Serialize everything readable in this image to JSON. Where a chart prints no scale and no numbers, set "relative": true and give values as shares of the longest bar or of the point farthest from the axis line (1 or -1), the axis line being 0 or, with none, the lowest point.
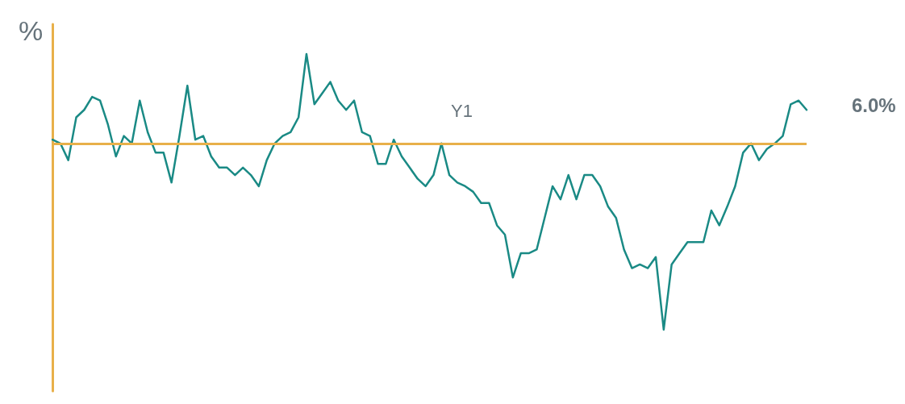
{
  "chart_data": {
    "type": "line",
    "relative": true,
    "ylabel": "%",
    "annotations": [
      "Y1",
      "6.0%"
    ],
    "categories": [
      null,
      null,
      null,
      null,
      null,
      null,
      null,
      null,
      null,
      null,
      null,
      null,
      null,
      null,
      null,
      null,
      null,
      null,
      null,
      null,
      null,
      null,
      null,
      null,
      null,
      null,
      null,
      null,
      null,
      null,
      null,
      null,
      null,
      null,
      null,
      null,
      null,
      null,
      null,
      null,
      null,
      null,
      null,
      null,
      null,
      null,
      null,
      null,
      null,
      null,
      null,
      null,
      null,
      null,
      null,
      null,
      null,
      null,
      null,
      null,
      null,
      null,
      null,
      null,
      null,
      null,
      null,
      null,
      null,
      null,
      null,
      null,
      null,
      null,
      null,
      null,
      null,
      null,
      null,
      null,
      null,
      null,
      null,
      null,
      null,
      null,
      null,
      null,
      null,
      null,
      null,
      null,
      null,
      null,
      null,
      null
    ],
    "series": [
      {
        "color": "#1a8a85",
        "values": [
          0.02,
          0.0,
          -0.09,
          0.14,
          0.18,
          0.25,
          0.23,
          0.1,
          -0.07,
          0.04,
          0.0,
          0.23,
          0.06,
          -0.05,
          -0.05,
          -0.21,
          0.04,
          0.31,
          0.02,
          0.04,
          -0.07,
          -0.13,
          -0.13,
          -0.17,
          -0.13,
          -0.17,
          -0.23,
          -0.09,
          0.0,
          0.04,
          0.06,
          0.14,
          0.48,
          0.21,
          0.27,
          0.33,
          0.23,
          0.18,
          0.23,
          0.06,
          0.04,
          -0.11,
          -0.11,
          0.02,
          -0.07,
          -0.13,
          -0.19,
          -0.23,
          -0.17,
          0.0,
          -0.17,
          -0.21,
          -0.23,
          -0.26,
          -0.32,
          -0.32,
          -0.44,
          -0.49,
          -0.72,
          -0.59,
          -0.59,
          -0.57,
          -0.4,
          -0.23,
          -0.3,
          -0.17,
          -0.3,
          -0.17,
          -0.17,
          -0.23,
          -0.34,
          -0.4,
          -0.57,
          -0.67,
          -0.65,
          -0.67,
          -0.61,
          -1,
          -0.65,
          -0.59,
          -0.53,
          -0.53,
          -0.53,
          -0.36,
          -0.44,
          -0.34,
          -0.23,
          -0.05,
          0.0,
          -0.09,
          -0.03,
          0.0,
          0.04,
          0.21,
          0.23,
          0.18
        ]
      }
    ],
    "ref_lines": [
      {
        "axis": "y",
        "value": 0,
        "color": "#e8b04a",
        "line_style": "solid"
      }
    ],
    "grid": false,
    "marker": "none",
    "line_style": "solid"
  }
}
